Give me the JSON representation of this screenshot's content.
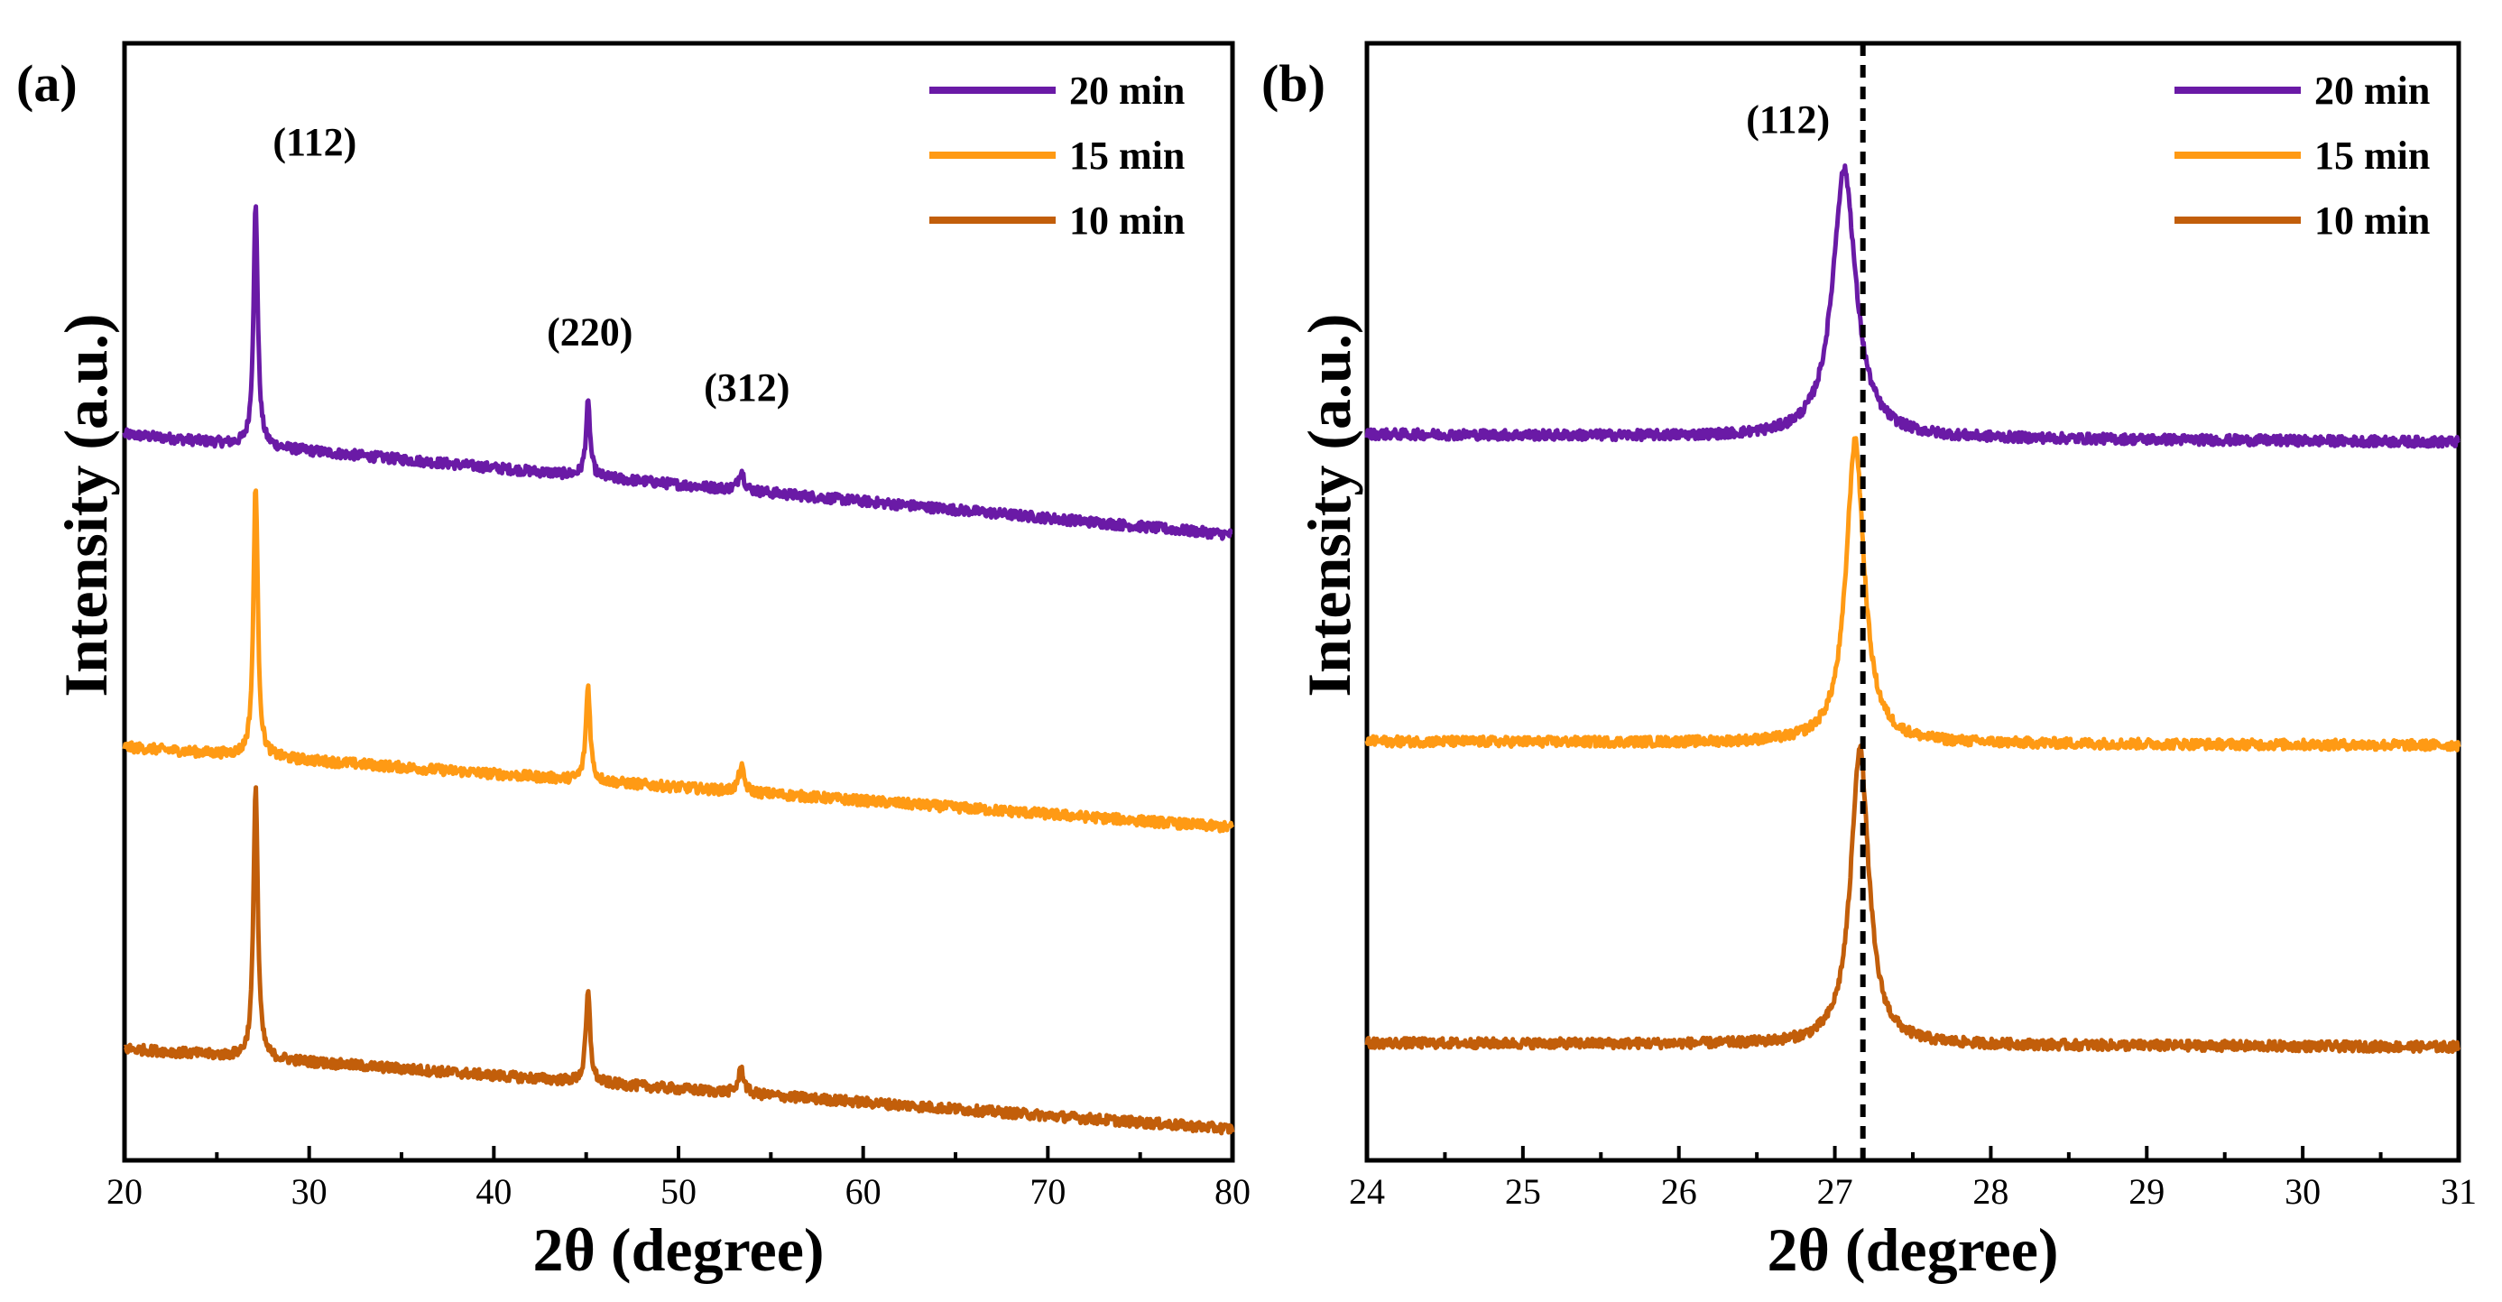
{
  "colors": {
    "20 min": "#6a1aa6",
    "15 min": "#ff9a14",
    "10 min": "#c25e0a",
    "axis": "#000000"
  },
  "chart_data": [
    {
      "panel": "(a)",
      "type": "line",
      "xlabel": "2θ (degree)",
      "ylabel": "Intensity (a.u.)",
      "xlim": [
        20,
        80
      ],
      "ylim": [
        0,
        10
      ],
      "xticks": [
        20,
        30,
        40,
        50,
        60,
        70,
        80
      ],
      "legend_position": "top-right",
      "legend": [
        "20 min",
        "15 min",
        "10 min"
      ],
      "series": [
        {
          "name": "20 min",
          "baseline": 6.5,
          "slope": -0.015,
          "peaks": [
            {
              "x": 27.1,
              "h": 2.15,
              "w": 0.14
            },
            {
              "x": 45.1,
              "h": 0.65,
              "w": 0.14
            },
            {
              "x": 53.4,
              "h": 0.18,
              "w": 0.18
            }
          ]
        },
        {
          "name": "15 min",
          "baseline": 3.7,
          "slope": -0.012,
          "peaks": [
            {
              "x": 27.1,
              "h": 2.45,
              "w": 0.14
            },
            {
              "x": 45.1,
              "h": 0.85,
              "w": 0.14
            },
            {
              "x": 53.4,
              "h": 0.22,
              "w": 0.18
            }
          ]
        },
        {
          "name": "10 min",
          "baseline": 1.0,
          "slope": -0.012,
          "peaks": [
            {
              "x": 27.1,
              "h": 2.45,
              "w": 0.14
            },
            {
              "x": 45.1,
              "h": 0.8,
              "w": 0.14
            },
            {
              "x": 53.4,
              "h": 0.22,
              "w": 0.18
            }
          ]
        }
      ],
      "annotations": [
        {
          "text": "(112)",
          "x": 30.3,
          "y": 9.0
        },
        {
          "text": "(220)",
          "x": 45.2,
          "y": 7.3
        },
        {
          "text": "(312)",
          "x": 53.7,
          "y": 6.8
        }
      ]
    },
    {
      "panel": "(b)",
      "type": "line",
      "xlabel": "2θ (degree)",
      "ylabel": "Intensity (a.u.)",
      "xlim": [
        24,
        31
      ],
      "ylim": [
        0,
        10
      ],
      "xticks": [
        24,
        25,
        26,
        27,
        28,
        29,
        30,
        31
      ],
      "legend_position": "top-right",
      "legend": [
        "20 min",
        "15 min",
        "10 min"
      ],
      "vline": {
        "x": 27.18,
        "style": "dashed"
      },
      "series": [
        {
          "name": "20 min",
          "baseline": 6.5,
          "slope": -0.01,
          "peaks": [
            {
              "x": 27.06,
              "h": 2.4,
              "w": 0.09
            }
          ]
        },
        {
          "name": "15 min",
          "baseline": 3.75,
          "slope": -0.005,
          "peaks": [
            {
              "x": 27.13,
              "h": 2.7,
              "w": 0.07
            }
          ]
        },
        {
          "name": "10 min",
          "baseline": 1.05,
          "slope": -0.005,
          "peaks": [
            {
              "x": 27.16,
              "h": 2.65,
              "w": 0.07
            }
          ]
        }
      ],
      "annotations": [
        {
          "text": "(112)",
          "x": 26.7,
          "y": 9.2
        }
      ]
    }
  ]
}
